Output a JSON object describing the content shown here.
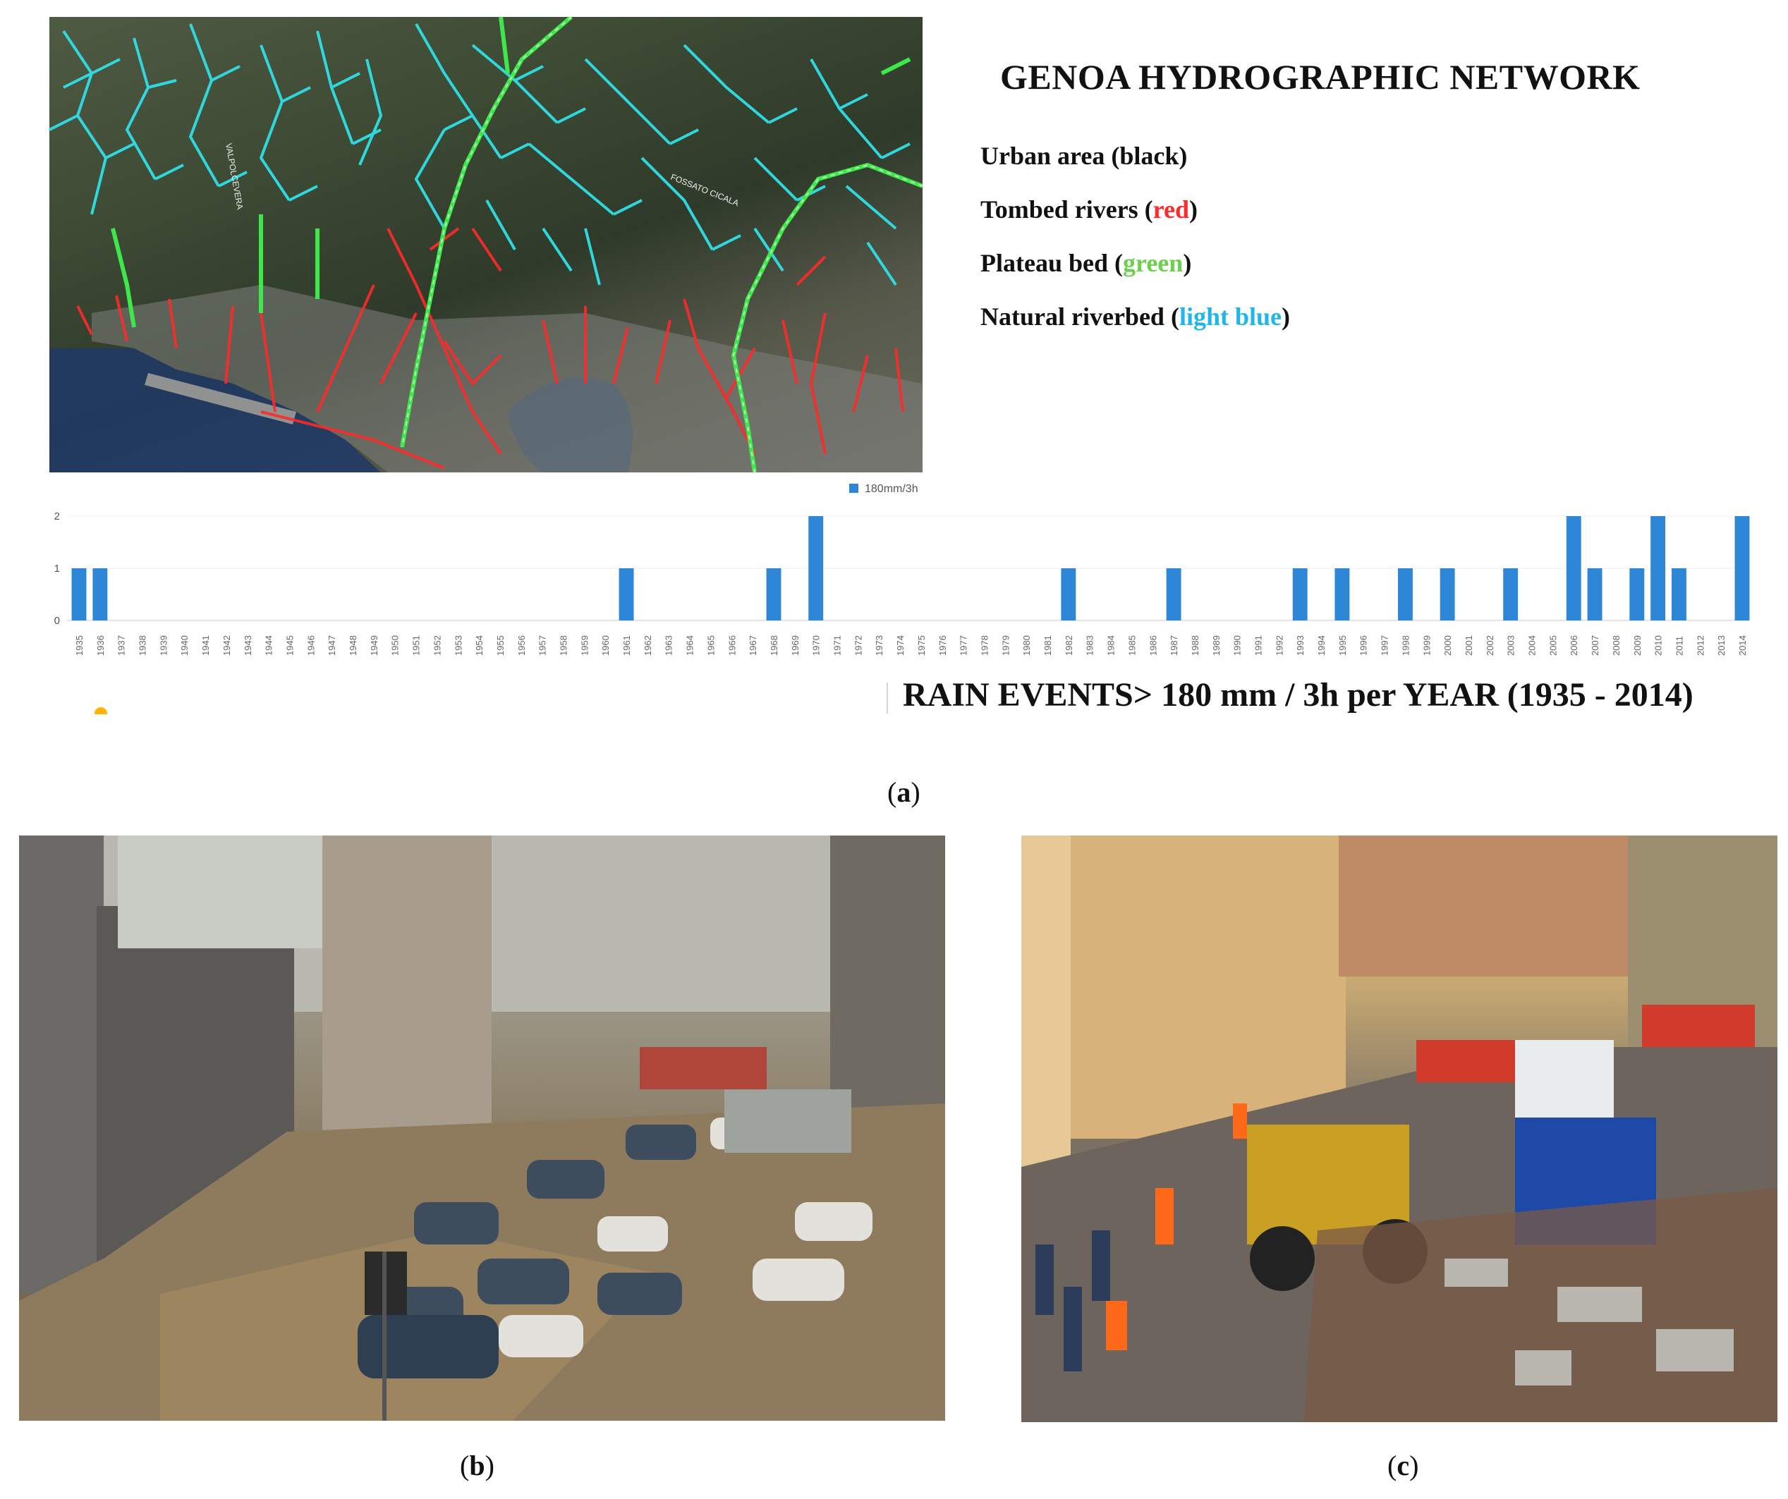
{
  "legend": {
    "title": "GENOA HYDROGRAPHIC NETWORK",
    "items": [
      {
        "prefix": "Urban area (black)",
        "colored": "",
        "suffix": "",
        "color": "#000000"
      },
      {
        "prefix": "Tombed rivers (",
        "colored": "red",
        "suffix": ")",
        "color": "#ff2a2a"
      },
      {
        "prefix": "Plateau bed (",
        "colored": "green",
        "suffix": ")",
        "color": "#6bd04a"
      },
      {
        "prefix": "Natural riverbed (",
        "colored": "light blue",
        "suffix": ")",
        "color": "#1fb6ea"
      }
    ]
  },
  "map": {
    "labels": [
      "VALPOLCEVERA",
      "FOSSATO CICALA"
    ]
  },
  "chart_data": {
    "type": "bar",
    "title": "RAIN EVENTS> 180 mm / 3h per YEAR (1935 - 2014)",
    "legend": [
      "180mm/3h"
    ],
    "legend_position": "top-center",
    "series": [
      {
        "name": "180mm/3h",
        "color": "#2e86d6"
      }
    ],
    "categories": [
      1935,
      1936,
      1937,
      1938,
      1939,
      1940,
      1941,
      1942,
      1943,
      1944,
      1945,
      1946,
      1947,
      1948,
      1949,
      1950,
      1951,
      1952,
      1953,
      1954,
      1955,
      1956,
      1957,
      1958,
      1959,
      1960,
      1961,
      1962,
      1963,
      1964,
      1965,
      1966,
      1967,
      1968,
      1969,
      1970,
      1971,
      1972,
      1973,
      1974,
      1975,
      1976,
      1977,
      1978,
      1979,
      1980,
      1981,
      1982,
      1983,
      1984,
      1985,
      1986,
      1987,
      1988,
      1989,
      1990,
      1991,
      1992,
      1993,
      1994,
      1995,
      1996,
      1997,
      1998,
      1999,
      2000,
      2001,
      2002,
      2003,
      2004,
      2005,
      2006,
      2007,
      2008,
      2009,
      2010,
      2011,
      2012,
      2013,
      2014
    ],
    "values": [
      1,
      1,
      0,
      0,
      0,
      0,
      0,
      0,
      0,
      0,
      0,
      0,
      0,
      0,
      0,
      0,
      0,
      0,
      0,
      0,
      0,
      0,
      0,
      0,
      0,
      0,
      1,
      0,
      0,
      0,
      0,
      0,
      0,
      1,
      0,
      2,
      0,
      0,
      0,
      0,
      0,
      0,
      0,
      0,
      0,
      0,
      0,
      1,
      0,
      0,
      0,
      0,
      1,
      0,
      0,
      0,
      0,
      0,
      1,
      0,
      1,
      0,
      0,
      1,
      0,
      1,
      0,
      0,
      1,
      0,
      0,
      2,
      1,
      0,
      1,
      2,
      1,
      0,
      0,
      2
    ],
    "y_ticks": [
      0,
      1,
      2
    ],
    "ylim": [
      0,
      2
    ],
    "grid": true
  },
  "captions": {
    "a": "a",
    "b": "b",
    "c": "c"
  }
}
